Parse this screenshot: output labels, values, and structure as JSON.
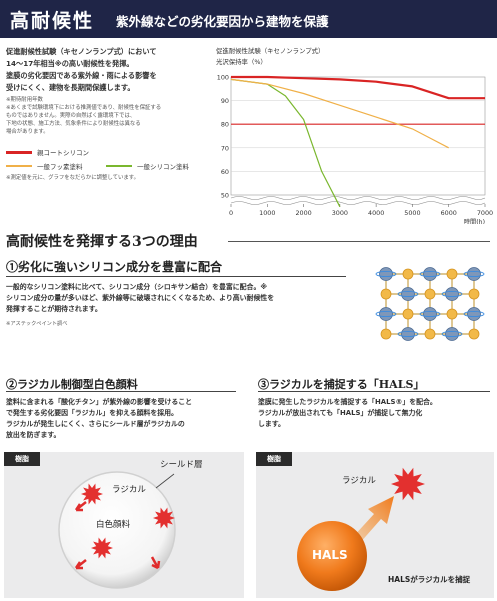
{
  "header": {
    "title": "高耐候性",
    "subtitle": "紫外線などの劣化要因から建物を保護"
  },
  "intro": {
    "lines": [
      "促進耐候性試験（キセノンランプ式）において",
      "14～17年相当※の高い耐候性を発揮。",
      "塗膜の劣化要因である紫外線・雨による影響を",
      "受けにくく、建物を長期間保護します。"
    ],
    "footnotes": [
      "※期待耐用年数",
      "※あくまで試験環境下における推測値であり、耐候性を保証する",
      "ものではありません。実際の自然ばく露環境下では、",
      "下地の状態、施工方法、気象条件により耐候性は異なる",
      "場合があります。"
    ],
    "note_bottom": "※測定値を元に、グラフをなだらかに調整しています。"
  },
  "legend": [
    {
      "label": "親コートシリコン",
      "color": "#d92424"
    },
    {
      "label": "一般フッ素塗料",
      "color": "#f0b048"
    },
    {
      "label": "一般シリコン塗料",
      "color": "#7ab72e"
    }
  ],
  "chart": {
    "title": "促進耐候性試験（キセノンランプ式）",
    "ylabel": "光沢保持率（%）",
    "xlabel": "時間(h)"
  },
  "chart_data": {
    "type": "line",
    "title": "促進耐候性試験（キセノンランプ式）",
    "xlabel": "時間(h)",
    "ylabel": "光沢保持率（%）",
    "xlim": [
      0,
      7000
    ],
    "ylim": [
      50,
      100
    ],
    "y_axis_break": true,
    "x_ticks": [
      "0",
      "1000",
      "2000",
      "3000",
      "4000",
      "5000",
      "6000",
      "7000"
    ],
    "y_ticks": [
      "100",
      "90",
      "80",
      "70",
      "60",
      "50"
    ],
    "reference_line_y": 80,
    "grid": true,
    "series": [
      {
        "name": "親コートシリコン",
        "color": "#d92424",
        "x": [
          0,
          1000,
          2000,
          3000,
          4000,
          5000,
          6000,
          7000
        ],
        "y": [
          100,
          100,
          99.5,
          99,
          98,
          96,
          91,
          91
        ]
      },
      {
        "name": "一般フッ素塗料",
        "color": "#f0b048",
        "x": [
          0,
          1000,
          2000,
          3000,
          4000,
          5000,
          5500,
          6000
        ],
        "y": [
          99,
          97,
          93,
          88,
          83,
          78,
          74,
          70
        ]
      },
      {
        "name": "一般シリコン塗料",
        "color": "#7ab72e",
        "x": [
          0,
          1000,
          1500,
          2000,
          2500,
          3000
        ],
        "y": [
          99,
          97,
          92,
          82,
          60,
          45
        ]
      }
    ]
  },
  "section": {
    "heading": "高耐候性を発揮する3つの理由"
  },
  "reason1": {
    "title": "①劣化に強いシリコン成分を豊富に配合",
    "lines": [
      "一般的なシリコン塗料に比べて、シリコン成分（シロキサン結合）を豊富に配合。※",
      "シリコン成分の量が多いほど、紫外線等に破壊されにくくなるため、より高い耐候性を",
      "発揮することが期待されます。"
    ],
    "note": "※アステックペイント調べ"
  },
  "reason2": {
    "title": "②ラジカル制御型白色顔料",
    "lines": [
      "塗料に含まれる「酸化チタン」が紫外線の影響を受けること",
      "で発生する劣化要因「ラジカル」を抑える顔料を採用。",
      "ラジカルが発生しにくく、さらにシールド層がラジカルの",
      "放出を防ぎます。"
    ],
    "panel": {
      "tag": "樹脂",
      "shield": "シールド層",
      "radical": "ラジカル",
      "pigment": "白色顔料"
    }
  },
  "reason3": {
    "title": "③ラジカルを捕捉する「HALS」",
    "lines": [
      "塗膜に発生したラジカルを捕捉する「HALS®」を配合。",
      "ラジカルが放出されても「HALS」が捕捉して無力化",
      "します。"
    ],
    "panel": {
      "tag": "樹脂",
      "radical": "ラジカル",
      "hals": "HALS",
      "caption": "HALSがラジカルを捕捉"
    }
  }
}
